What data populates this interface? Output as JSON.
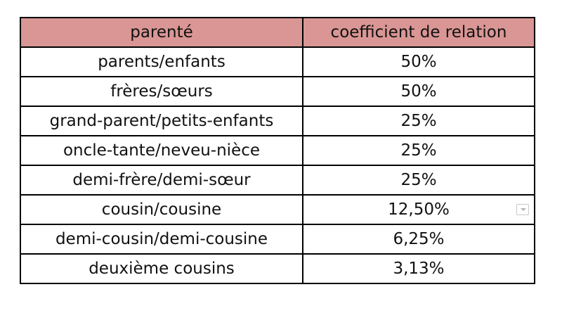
{
  "table": {
    "headers": [
      "parenté",
      "coefficient de relation"
    ],
    "rows": [
      {
        "relation": "parents/enfants",
        "coefficient": "50%"
      },
      {
        "relation": "frères/sœurs",
        "coefficient": "50%"
      },
      {
        "relation": "grand-parent/petits-enfants",
        "coefficient": "25%"
      },
      {
        "relation": "oncle-tante/neveu-nièce",
        "coefficient": "25%"
      },
      {
        "relation": "demi-frère/demi-sœur",
        "coefficient": "25%"
      },
      {
        "relation": "cousin/cousine",
        "coefficient": "12,50%"
      },
      {
        "relation": "demi-cousin/demi-cousine",
        "coefficient": "6,25%"
      },
      {
        "relation": "deuxième cousins",
        "coefficient": "3,13%"
      }
    ]
  },
  "colors": {
    "header_background": "#d99694",
    "border": "#000000"
  },
  "icons": {
    "autofill_options": "chevron-down-icon"
  }
}
